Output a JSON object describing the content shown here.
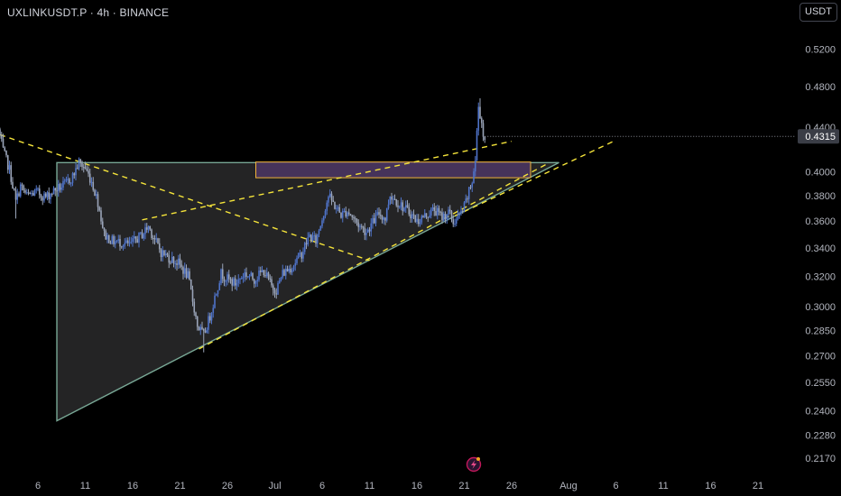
{
  "header": {
    "symbol_title": "UXLINKUSDT.P · 4h · BINANCE",
    "currency_label": "USDT"
  },
  "colors": {
    "background": "#000000",
    "candle_up": "#4f73c9",
    "candle_down": "#9aa4b8",
    "trendline": "#f5e43a",
    "triangle_fill": "#2a2a2c",
    "triangle_stroke": "#78a795",
    "zone_fill": "#4a3561",
    "zone_stroke": "#f0b33a",
    "price_tag": "#3a3d46",
    "text": "#b2b5be"
  },
  "chart_data": {
    "type": "candlestick",
    "title": "UXLINKUSDT.P · 4h · BINANCE",
    "y_axis": {
      "unit": "USDT",
      "scale": "log",
      "range": [
        0.21,
        0.545
      ],
      "ticks": [
        "0.5200",
        "0.4800",
        "0.4400",
        "0.4000",
        "0.3800",
        "0.3600",
        "0.3400",
        "0.3200",
        "0.3000",
        "0.2850",
        "0.2700",
        "0.2550",
        "0.2400",
        "0.2280",
        "0.2170"
      ]
    },
    "x_axis": {
      "range": [
        "2025-06-02",
        "2025-08-25"
      ],
      "ticks": [
        {
          "label": "6",
          "date": "2025-06-06"
        },
        {
          "label": "11",
          "date": "2025-06-11"
        },
        {
          "label": "16",
          "date": "2025-06-16"
        },
        {
          "label": "21",
          "date": "2025-06-21"
        },
        {
          "label": "26",
          "date": "2025-06-26"
        },
        {
          "label": "Jul",
          "date": "2025-07-01"
        },
        {
          "label": "6",
          "date": "2025-07-06"
        },
        {
          "label": "11",
          "date": "2025-07-11"
        },
        {
          "label": "16",
          "date": "2025-07-16"
        },
        {
          "label": "21",
          "date": "2025-07-21"
        },
        {
          "label": "26",
          "date": "2025-07-26"
        },
        {
          "label": "Aug",
          "date": "2025-08-01"
        },
        {
          "label": "6",
          "date": "2025-08-06"
        },
        {
          "label": "11",
          "date": "2025-08-11"
        },
        {
          "label": "16",
          "date": "2025-08-16"
        },
        {
          "label": "21",
          "date": "2025-08-21"
        }
      ]
    },
    "grid": false,
    "current_price": "0.4315",
    "price_path": [
      [
        "2025-06-02T00:00",
        0.438
      ],
      [
        "2025-06-02T12:00",
        0.418
      ],
      [
        "2025-06-03T04:00",
        0.402
      ],
      [
        "2025-06-03T20:00",
        0.375
      ],
      [
        "2025-06-04T08:00",
        0.388
      ],
      [
        "2025-06-05T00:00",
        0.38
      ],
      [
        "2025-06-06T00:00",
        0.383
      ],
      [
        "2025-06-07T00:00",
        0.379
      ],
      [
        "2025-06-08T00:00",
        0.385
      ],
      [
        "2025-06-09T00:00",
        0.389
      ],
      [
        "2025-06-09T20:00",
        0.396
      ],
      [
        "2025-06-10T12:00",
        0.408
      ],
      [
        "2025-06-11T04:00",
        0.403
      ],
      [
        "2025-06-11T20:00",
        0.392
      ],
      [
        "2025-06-12T12:00",
        0.375
      ],
      [
        "2025-06-13T04:00",
        0.35
      ],
      [
        "2025-06-14T00:00",
        0.345
      ],
      [
        "2025-06-15T00:00",
        0.344
      ],
      [
        "2025-06-15T20:00",
        0.342
      ],
      [
        "2025-06-16T12:00",
        0.346
      ],
      [
        "2025-06-17T04:00",
        0.35
      ],
      [
        "2025-06-17T20:00",
        0.356
      ],
      [
        "2025-06-18T12:00",
        0.346
      ],
      [
        "2025-06-19T04:00",
        0.337
      ],
      [
        "2025-06-20T00:00",
        0.333
      ],
      [
        "2025-06-21T00:00",
        0.329
      ],
      [
        "2025-06-22T00:00",
        0.32
      ],
      [
        "2025-06-23T00:00",
        0.288
      ],
      [
        "2025-06-23T16:00",
        0.282
      ],
      [
        "2025-06-24T08:00",
        0.294
      ],
      [
        "2025-06-25T00:00",
        0.31
      ],
      [
        "2025-06-25T12:00",
        0.322
      ],
      [
        "2025-06-26T04:00",
        0.318
      ],
      [
        "2025-06-27T00:00",
        0.315
      ],
      [
        "2025-06-28T00:00",
        0.322
      ],
      [
        "2025-06-29T00:00",
        0.318
      ],
      [
        "2025-06-30T00:00",
        0.324
      ],
      [
        "2025-06-30T20:00",
        0.313
      ],
      [
        "2025-07-01T08:00",
        0.311
      ],
      [
        "2025-07-02T00:00",
        0.322
      ],
      [
        "2025-07-03T00:00",
        0.327
      ],
      [
        "2025-07-04T00:00",
        0.336
      ],
      [
        "2025-07-04T20:00",
        0.349
      ],
      [
        "2025-07-05T12:00",
        0.345
      ],
      [
        "2025-07-06T04:00",
        0.362
      ],
      [
        "2025-07-06T20:00",
        0.38
      ],
      [
        "2025-07-07T12:00",
        0.372
      ],
      [
        "2025-07-08T04:00",
        0.365
      ],
      [
        "2025-07-08T20:00",
        0.368
      ],
      [
        "2025-07-09T12:00",
        0.362
      ],
      [
        "2025-07-10T04:00",
        0.356
      ],
      [
        "2025-07-10T20:00",
        0.352
      ],
      [
        "2025-07-11T12:00",
        0.359
      ],
      [
        "2025-07-12T04:00",
        0.366
      ],
      [
        "2025-07-12T20:00",
        0.362
      ],
      [
        "2025-07-13T08:00",
        0.381
      ],
      [
        "2025-07-14T00:00",
        0.376
      ],
      [
        "2025-07-14T20:00",
        0.37
      ],
      [
        "2025-07-15T12:00",
        0.366
      ],
      [
        "2025-07-16T04:00",
        0.36
      ],
      [
        "2025-07-17T00:00",
        0.364
      ],
      [
        "2025-07-18T00:00",
        0.369
      ],
      [
        "2025-07-18T20:00",
        0.363
      ],
      [
        "2025-07-19T12:00",
        0.367
      ],
      [
        "2025-07-20T00:00",
        0.359
      ],
      [
        "2025-07-20T16:00",
        0.364
      ],
      [
        "2025-07-21T04:00",
        0.371
      ],
      [
        "2025-07-21T16:00",
        0.383
      ],
      [
        "2025-07-22T00:00",
        0.392
      ],
      [
        "2025-07-22T08:00",
        0.41
      ],
      [
        "2025-07-22T16:00",
        0.46
      ],
      [
        "2025-07-23T00:00",
        0.445
      ],
      [
        "2025-07-23T04:00",
        0.4315
      ]
    ],
    "drawings": {
      "triangle": [
        [
          "2025-06-08",
          0.408
        ],
        [
          "2025-07-31",
          0.408
        ],
        [
          "2025-06-08",
          0.235
        ]
      ],
      "ascending_support": [
        [
          "2025-06-23",
          0.274
        ],
        [
          "2025-07-30",
          0.408
        ]
      ],
      "ascending_support_2": [
        [
          "2025-07-20",
          0.364
        ],
        [
          "2025-08-06",
          0.428
        ]
      ],
      "descending_line": [
        [
          "2025-06-02",
          0.433
        ],
        [
          "2025-07-11",
          0.331
        ]
      ],
      "rising_channel": [
        [
          "2025-06-17",
          0.361
        ],
        [
          "2025-07-26",
          0.427
        ]
      ],
      "resistance_zone": {
        "from": "2025-06-29",
        "to": "2025-07-28",
        "top": 0.4085,
        "bottom": 0.395
      }
    }
  }
}
